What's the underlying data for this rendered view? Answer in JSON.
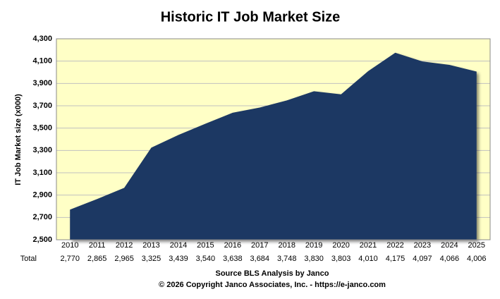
{
  "chart_data": {
    "type": "area",
    "title": "Historic IT Job Market Size",
    "y_label": "IT Job Market size (x000)",
    "table_row_label": "Total",
    "source": "Source BLS Analysis  by Janco",
    "copyright": "© 2026 Copyright Janco Associates, Inc. - https://e-janco.com",
    "categories": [
      "2010",
      "2011",
      "2012",
      "2013",
      "2014",
      "2015",
      "2016",
      "2017",
      "2018",
      "2019",
      "2020",
      "2021",
      "2022",
      "2023",
      "2024",
      "2025"
    ],
    "values": [
      2770,
      2865,
      2965,
      3325,
      3439,
      3540,
      3638,
      3684,
      3748,
      3830,
      3803,
      4010,
      4175,
      4097,
      4066,
      4006
    ],
    "value_labels": [
      "2,770",
      "2,865",
      "2,965",
      "3,325",
      "3,439",
      "3,540",
      "3,638",
      "3,684",
      "3,748",
      "3,830",
      "3,803",
      "4,010",
      "4,175",
      "4,097",
      "4,066",
      "4,006"
    ],
    "color": "#1f3864",
    "plot_background": "#ffffc6",
    "grid": true,
    "ylim": [
      2500,
      4300
    ],
    "yticks": [
      {
        "value": 2500,
        "label": "2,500"
      },
      {
        "value": 2700,
        "label": "2,700"
      },
      {
        "value": 2900,
        "label": "2,900"
      },
      {
        "value": 3100,
        "label": "3,100"
      },
      {
        "value": 3300,
        "label": "3,300"
      },
      {
        "value": 3500,
        "label": "3,500"
      },
      {
        "value": 3700,
        "label": "3,700"
      },
      {
        "value": 3900,
        "label": "3,900"
      },
      {
        "value": 4100,
        "label": "4,100"
      },
      {
        "value": 4300,
        "label": "4,300"
      }
    ]
  }
}
